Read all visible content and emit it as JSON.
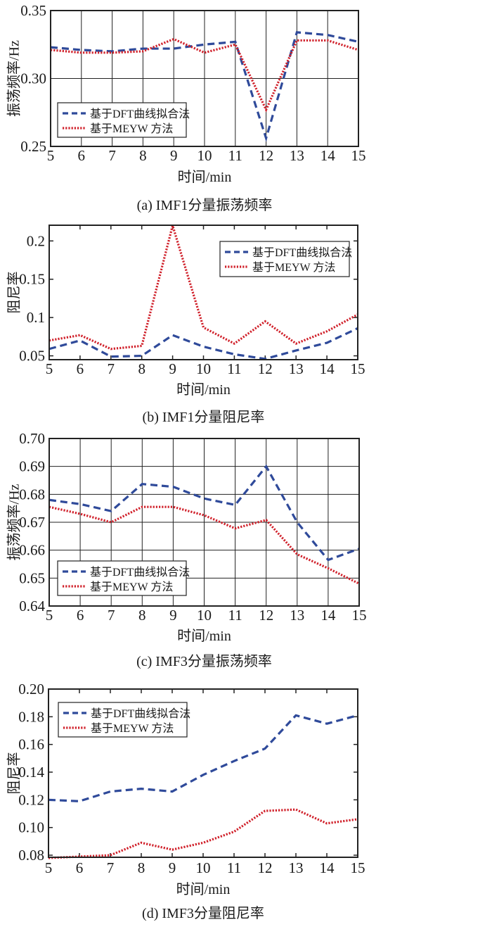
{
  "colors": {
    "dft": "#2f4a9a",
    "meyw": "#d0202a",
    "axis": "#222222",
    "grid": "#222222"
  },
  "chart_data": [
    {
      "type": "line",
      "caption": "(a) IMF1分量振荡频率",
      "xlabel": "时间/min",
      "ylabel": "振荡频率/Hz",
      "xlim": [
        5,
        15
      ],
      "ylim": [
        0.25,
        0.35
      ],
      "grid": true,
      "x": [
        5,
        6,
        7,
        8,
        9,
        10,
        11,
        12,
        13,
        14,
        15
      ],
      "xticks": [
        "5",
        "6",
        "7",
        "8",
        "9",
        "10",
        "11",
        "12",
        "13",
        "14",
        "15"
      ],
      "yticks": [
        0.25,
        0.3,
        0.35
      ],
      "ytick_labels": [
        "0.25",
        "0.30",
        "0.35"
      ],
      "legend_position": "lower-left",
      "series": [
        {
          "name": "基于DFT曲线拟合法",
          "style": "dashed",
          "values": [
            0.323,
            0.321,
            0.32,
            0.322,
            0.322,
            0.325,
            0.327,
            0.256,
            0.334,
            0.332,
            0.327
          ]
        },
        {
          "name": "基于MEYW 方法",
          "style": "dotted",
          "values": [
            0.321,
            0.319,
            0.319,
            0.32,
            0.329,
            0.319,
            0.325,
            0.277,
            0.328,
            0.328,
            0.321
          ]
        }
      ]
    },
    {
      "type": "line",
      "caption": "(b) IMF1分量阻尼率",
      "xlabel": "时间/min",
      "ylabel": "阻尼率",
      "xlim": [
        5,
        15
      ],
      "ylim": [
        0.045,
        0.2205
      ],
      "grid": false,
      "x": [
        5,
        6,
        7,
        8,
        9,
        10,
        11,
        12,
        13,
        14,
        15
      ],
      "xticks": [
        "5",
        "6",
        "7",
        "8",
        "9",
        "10",
        "11",
        "12",
        "13",
        "14",
        "15"
      ],
      "yticks": [
        0.05,
        0.1,
        0.15,
        0.2
      ],
      "ytick_labels": [
        "0.05",
        "0.1",
        "0.15",
        "0.2"
      ],
      "legend_position": "upper-right",
      "series": [
        {
          "name": "基于DFT曲线拟合法",
          "style": "dashed",
          "values": [
            0.059,
            0.07,
            0.049,
            0.05,
            0.077,
            0.062,
            0.052,
            0.046,
            0.057,
            0.067,
            0.086
          ]
        },
        {
          "name": "基于MEYW 方法",
          "style": "dotted",
          "values": [
            0.07,
            0.077,
            0.059,
            0.063,
            0.22,
            0.087,
            0.066,
            0.095,
            0.066,
            0.082,
            0.104
          ]
        }
      ]
    },
    {
      "type": "line",
      "caption": "(c) IMF3分量振荡频率",
      "xlabel": "时间/min",
      "ylabel": "振荡频率/Hz",
      "xlim": [
        5,
        15
      ],
      "ylim": [
        0.64,
        0.7
      ],
      "grid": true,
      "x": [
        5,
        6,
        7,
        8,
        9,
        10,
        11,
        12,
        13,
        14,
        15
      ],
      "xticks": [
        "5",
        "6",
        "7",
        "8",
        "9",
        "10",
        "11",
        "12",
        "13",
        "14",
        "15"
      ],
      "yticks": [
        0.64,
        0.65,
        0.66,
        0.67,
        0.68,
        0.69,
        0.7
      ],
      "ytick_labels": [
        "0.64",
        "0.65",
        "0.66",
        "0.67",
        "0.68",
        "0.69",
        "0.70"
      ],
      "legend_position": "lower-left",
      "series": [
        {
          "name": "基于DFT曲线拟合法",
          "style": "dashed",
          "values": [
            0.678,
            0.6765,
            0.674,
            0.6837,
            0.6827,
            0.6785,
            0.6762,
            0.69,
            0.67,
            0.6565,
            0.6605
          ]
        },
        {
          "name": "基于MEYW 方法",
          "style": "dotted",
          "values": [
            0.6755,
            0.673,
            0.67,
            0.6755,
            0.6755,
            0.6725,
            0.6678,
            0.6708,
            0.6585,
            0.6535,
            0.648
          ]
        }
      ]
    },
    {
      "type": "line",
      "caption": "(d) IMF3分量阻尼率",
      "xlabel": "时间/min",
      "ylabel": "阻尼率",
      "xlim": [
        5,
        15
      ],
      "ylim": [
        0.0785,
        0.2
      ],
      "grid": false,
      "x": [
        5,
        6,
        7,
        8,
        9,
        10,
        11,
        12,
        13,
        14,
        15
      ],
      "xticks": [
        "5",
        "6",
        "7",
        "8",
        "9",
        "10",
        "11",
        "12",
        "13",
        "14",
        "15"
      ],
      "yticks": [
        0.08,
        0.1,
        0.12,
        0.14,
        0.16,
        0.18,
        0.2
      ],
      "ytick_labels": [
        "0.08",
        "0.10",
        "0.12",
        "0.14",
        "0.16",
        "0.18",
        "0.20"
      ],
      "legend_position": "upper-left",
      "series": [
        {
          "name": "基于DFT曲线拟合法",
          "style": "dashed",
          "values": [
            0.12,
            0.119,
            0.126,
            0.128,
            0.126,
            0.138,
            0.148,
            0.157,
            0.181,
            0.175,
            0.181
          ]
        },
        {
          "name": "基于MEYW 方法",
          "style": "dotted",
          "values": [
            0.078,
            0.079,
            0.08,
            0.089,
            0.084,
            0.089,
            0.097,
            0.112,
            0.113,
            0.103,
            0.106
          ]
        }
      ]
    }
  ]
}
